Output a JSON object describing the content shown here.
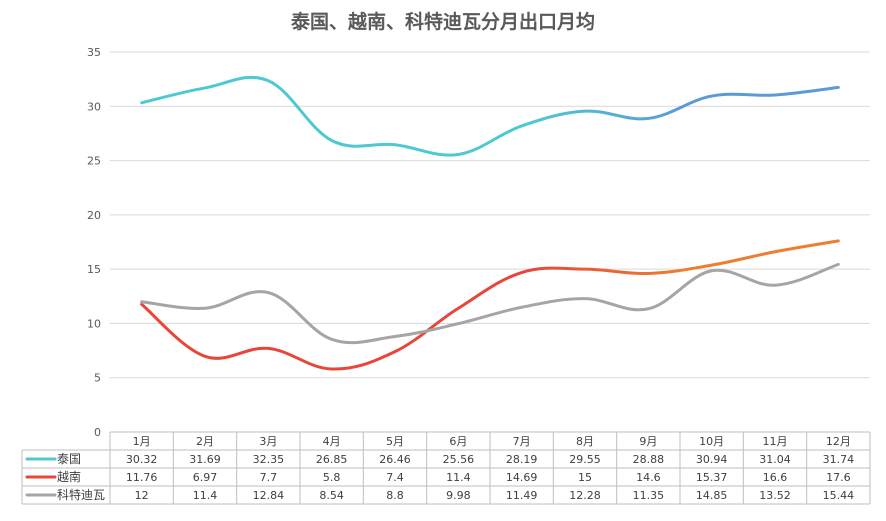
{
  "chart_data": {
    "type": "line",
    "title": "泰国、越南、科特迪瓦分月出口月均",
    "categories": [
      "1月",
      "2月",
      "3月",
      "4月",
      "5月",
      "6月",
      "7月",
      "8月",
      "9月",
      "10月",
      "11月",
      "12月"
    ],
    "ylim": [
      0,
      35
    ],
    "yticks": [
      0,
      5,
      10,
      15,
      20,
      25,
      30,
      35
    ],
    "grid": true,
    "legend": "data-table",
    "series": [
      {
        "name": "泰国",
        "color": "#4ec9d2",
        "color_end": "#5a9bd5",
        "values": [
          30.32,
          31.69,
          32.35,
          26.85,
          26.46,
          25.56,
          28.19,
          29.55,
          28.88,
          30.94,
          31.04,
          31.74
        ]
      },
      {
        "name": "越南",
        "color": "#e8463a",
        "color_end": "#ed7d31",
        "values": [
          11.76,
          6.97,
          7.7,
          5.8,
          7.4,
          11.4,
          14.69,
          15,
          14.6,
          15.37,
          16.6,
          17.6
        ]
      },
      {
        "name": "科特迪瓦",
        "color": "#a5a5a5",
        "color_end": "#a5a5a5",
        "values": [
          12,
          11.4,
          12.84,
          8.54,
          8.8,
          9.98,
          11.49,
          12.28,
          11.35,
          14.85,
          13.52,
          15.44
        ]
      }
    ]
  }
}
